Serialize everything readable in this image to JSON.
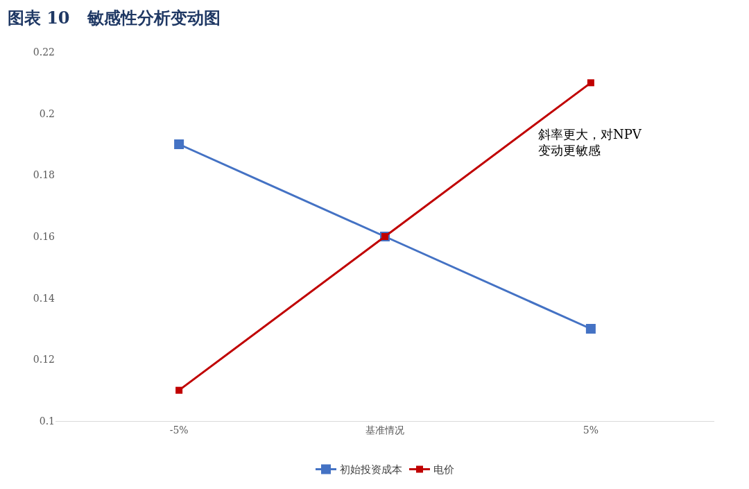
{
  "chart_data": {
    "type": "line",
    "title": "图表 10   敏感性分析变动图",
    "categories": [
      "-5%",
      "基准情况",
      "5%"
    ],
    "series": [
      {
        "name": "初始投资成本",
        "color": "#4472c4",
        "values": [
          0.19,
          0.16,
          0.13
        ]
      },
      {
        "name": "电价",
        "color": "#c00000",
        "values": [
          0.11,
          0.16,
          0.21
        ]
      }
    ],
    "ylim": [
      0.1,
      0.22
    ],
    "yticks": [
      0.1,
      0.12,
      0.14,
      0.16,
      0.18,
      0.2,
      0.22
    ],
    "legend": "bottom",
    "marker": "square",
    "line_style": "solid",
    "annotations": [
      "斜率更大，对NPV\n变动更敏感"
    ]
  }
}
